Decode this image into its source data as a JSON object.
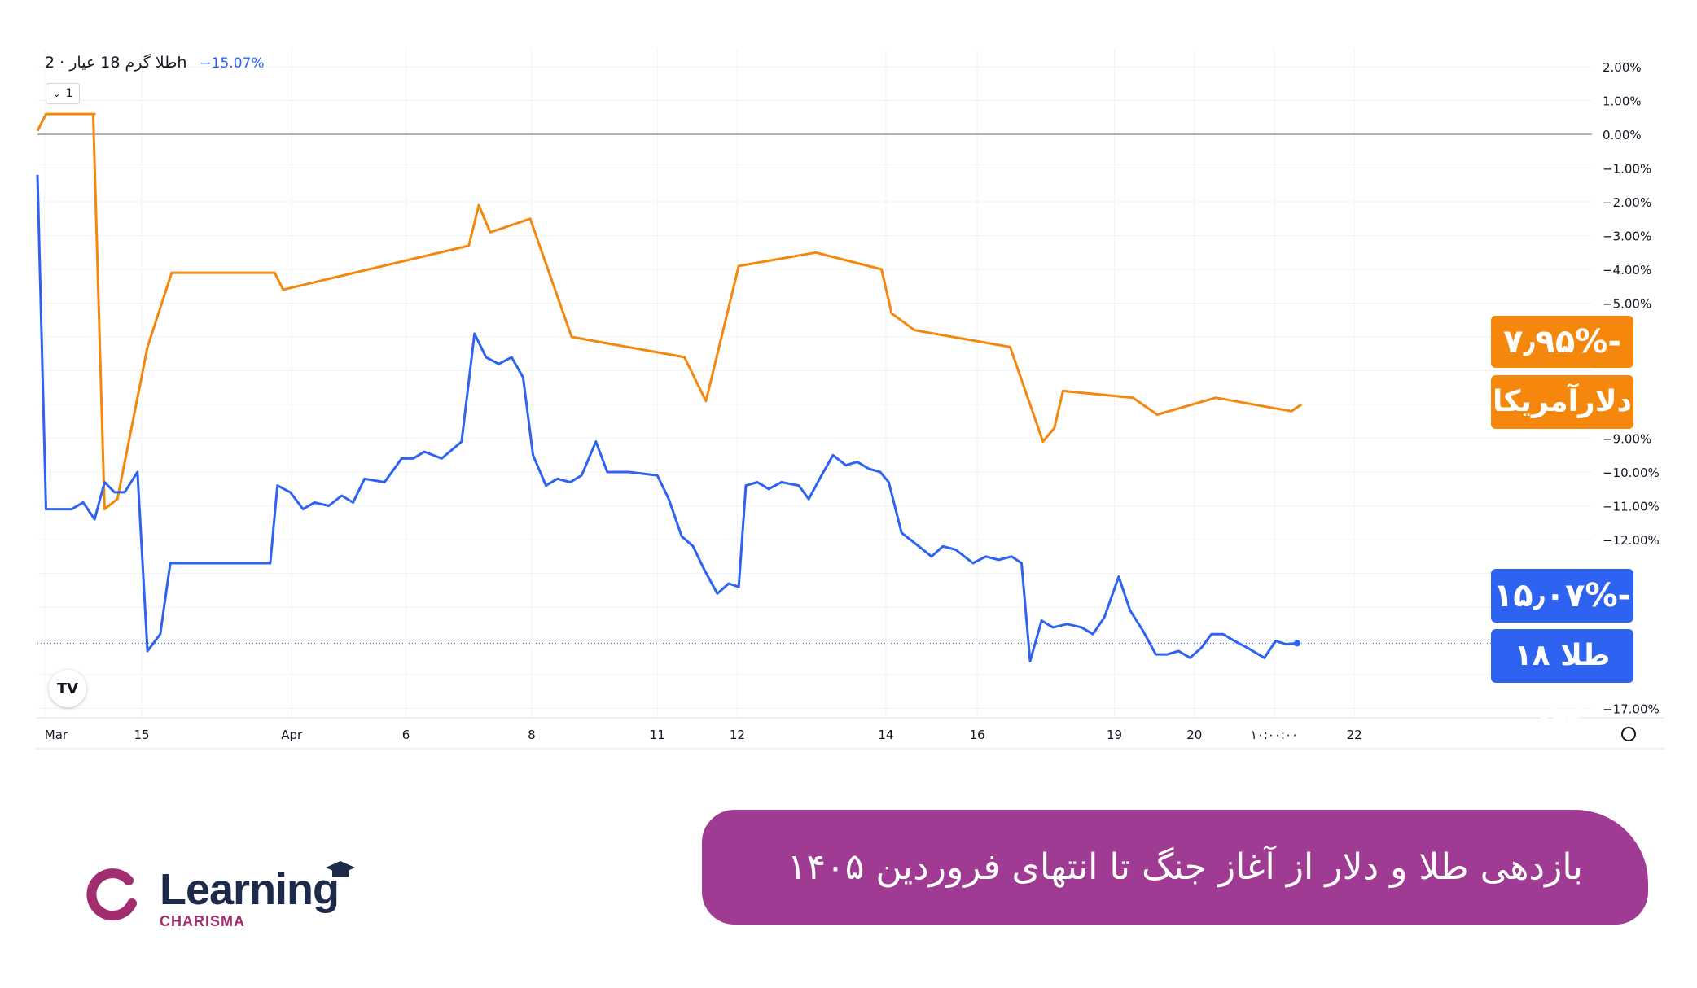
{
  "header": {
    "title": "طلا گرم 18 عیار · 2h",
    "change": "−15.07%"
  },
  "interval_selector": {
    "chevron": "⌄",
    "value": "1"
  },
  "tv_logo": {
    "text": "TV",
    "icon": "tradingview-logo-icon"
  },
  "settings_icon": "gear-icon",
  "labels": {
    "usd_pct": "-۷٫۹۵%",
    "usd_name": "دلارآمریکا",
    "gold_pct": "-۱۵٫۰۷%",
    "gold_name": "طلا ۱۸ عیار"
  },
  "banner": {
    "text": "بازدهی طلا و دلار از آغاز جنگ تا انتهای فروردین ۱۴۰۵"
  },
  "brand": {
    "name": "Learning",
    "sub": "CHARISMA"
  },
  "colors": {
    "usd": "#f4870c",
    "gold": "#2d63f0",
    "banner": "#9f3b92"
  },
  "chart_data": {
    "type": "line",
    "ylim": [
      -17.5,
      2.5
    ],
    "yticks": [
      2,
      1,
      0,
      -1,
      -2,
      -3,
      -4,
      -5,
      -9,
      -10,
      -11,
      -12,
      -17
    ],
    "ytick_labels": [
      "2.00%",
      "1.00%",
      "0.00%",
      "−1.00%",
      "−2.00%",
      "−3.00%",
      "−4.00%",
      "−5.00%",
      "−9.00%",
      "−10.00%",
      "−11.00%",
      "−12.00%",
      "−17.00%"
    ],
    "xlim": [
      0,
      100
    ],
    "x_ticks": [
      {
        "x": 0.5,
        "label": "Mar"
      },
      {
        "x": 7.3,
        "label": "15"
      },
      {
        "x": 17.8,
        "label": "Apr"
      },
      {
        "x": 25.8,
        "label": "6"
      },
      {
        "x": 34.6,
        "label": "8"
      },
      {
        "x": 43.4,
        "label": "11"
      },
      {
        "x": 49.0,
        "label": "12"
      },
      {
        "x": 59.4,
        "label": "14"
      },
      {
        "x": 65.8,
        "label": "16"
      },
      {
        "x": 75.4,
        "label": "19"
      },
      {
        "x": 81.0,
        "label": "20"
      },
      {
        "x": 86.6,
        "label": "۱۰:۰۰:۰۰"
      },
      {
        "x": 92.2,
        "label": "22"
      }
    ],
    "zero_line": 0,
    "last_value_line": -15.07,
    "grid": true,
    "series": [
      {
        "color": "#f4870c",
        "points": [
          [
            0,
            0.1
          ],
          [
            0.6,
            0.6
          ],
          [
            2,
            0.6
          ],
          [
            4,
            0.6
          ],
          [
            3.9,
            0.6
          ],
          [
            4.7,
            -11.1
          ],
          [
            5.6,
            -10.8
          ],
          [
            7.7,
            -6.3
          ],
          [
            9.4,
            -4.1
          ],
          [
            16.6,
            -4.1
          ],
          [
            17.2,
            -4.6
          ],
          [
            30.2,
            -3.3
          ],
          [
            30.9,
            -2.1
          ],
          [
            31.7,
            -2.9
          ],
          [
            34.5,
            -2.5
          ],
          [
            37.4,
            -6.0
          ],
          [
            45.3,
            -6.6
          ],
          [
            46.8,
            -7.9
          ],
          [
            49.1,
            -3.9
          ],
          [
            54.5,
            -3.5
          ],
          [
            59.1,
            -4.0
          ],
          [
            59.8,
            -5.3
          ],
          [
            61.4,
            -5.8
          ],
          [
            68.1,
            -6.3
          ],
          [
            70.4,
            -9.1
          ],
          [
            71.2,
            -8.7
          ],
          [
            71.8,
            -7.6
          ],
          [
            76.7,
            -7.8
          ],
          [
            78.4,
            -8.3
          ],
          [
            82.5,
            -7.8
          ],
          [
            87.8,
            -8.2
          ],
          [
            88.5,
            -8.0
          ]
        ]
      },
      {
        "color": "#2d63f0",
        "points": [
          [
            0,
            -1.2
          ],
          [
            0.6,
            -11.1
          ],
          [
            2.4,
            -11.1
          ],
          [
            3.2,
            -10.9
          ],
          [
            4,
            -11.4
          ],
          [
            4.7,
            -10.3
          ],
          [
            5.4,
            -10.6
          ],
          [
            6.1,
            -10.6
          ],
          [
            7,
            -10.0
          ],
          [
            7.7,
            -15.3
          ],
          [
            8.6,
            -14.8
          ],
          [
            9.3,
            -12.7
          ],
          [
            16.3,
            -12.7
          ],
          [
            16.8,
            -10.4
          ],
          [
            17.7,
            -10.6
          ],
          [
            18.6,
            -11.1
          ],
          [
            19.4,
            -10.9
          ],
          [
            20.4,
            -11.0
          ],
          [
            21.3,
            -10.7
          ],
          [
            22.1,
            -10.9
          ],
          [
            22.9,
            -10.2
          ],
          [
            24.3,
            -10.3
          ],
          [
            25.5,
            -9.6
          ],
          [
            26.3,
            -9.6
          ],
          [
            27.1,
            -9.4
          ],
          [
            28.3,
            -9.6
          ],
          [
            29.7,
            -9.1
          ],
          [
            30.6,
            -5.9
          ],
          [
            31.4,
            -6.6
          ],
          [
            32.3,
            -6.8
          ],
          [
            33.2,
            -6.6
          ],
          [
            34,
            -7.2
          ],
          [
            34.7,
            -9.5
          ],
          [
            35.6,
            -10.4
          ],
          [
            36.4,
            -10.2
          ],
          [
            37.3,
            -10.3
          ],
          [
            38.1,
            -10.1
          ],
          [
            39.1,
            -9.1
          ],
          [
            39.9,
            -10.0
          ],
          [
            41.4,
            -10.0
          ],
          [
            43.4,
            -10.1
          ],
          [
            44.2,
            -10.8
          ],
          [
            45.1,
            -11.9
          ],
          [
            45.9,
            -12.2
          ],
          [
            46.7,
            -12.9
          ],
          [
            47.6,
            -13.6
          ],
          [
            48.4,
            -13.3
          ],
          [
            49.1,
            -13.4
          ],
          [
            49.6,
            -10.4
          ],
          [
            50.4,
            -10.3
          ],
          [
            51.2,
            -10.5
          ],
          [
            52.1,
            -10.3
          ],
          [
            53.3,
            -10.4
          ],
          [
            54,
            -10.8
          ],
          [
            54.9,
            -10.1
          ],
          [
            55.7,
            -9.5
          ],
          [
            56.6,
            -9.8
          ],
          [
            57.4,
            -9.7
          ],
          [
            58.2,
            -9.9
          ],
          [
            59,
            -10.0
          ],
          [
            59.6,
            -10.3
          ],
          [
            60.5,
            -11.8
          ],
          [
            61.4,
            -12.1
          ],
          [
            62.6,
            -12.5
          ],
          [
            63.4,
            -12.2
          ],
          [
            64.3,
            -12.3
          ],
          [
            65.5,
            -12.7
          ],
          [
            66.4,
            -12.5
          ],
          [
            67.3,
            -12.6
          ],
          [
            68.2,
            -12.5
          ],
          [
            68.9,
            -12.7
          ],
          [
            69.5,
            -15.6
          ],
          [
            70.3,
            -14.4
          ],
          [
            71.1,
            -14.6
          ],
          [
            72.1,
            -14.5
          ],
          [
            73.1,
            -14.6
          ],
          [
            73.9,
            -14.8
          ],
          [
            74.7,
            -14.3
          ],
          [
            75.7,
            -13.1
          ],
          [
            76.5,
            -14.1
          ],
          [
            77.4,
            -14.7
          ],
          [
            78.3,
            -15.4
          ],
          [
            79.1,
            -15.4
          ],
          [
            79.9,
            -15.3
          ],
          [
            80.7,
            -15.5
          ],
          [
            81.5,
            -15.2
          ],
          [
            82.2,
            -14.8
          ],
          [
            83,
            -14.8
          ],
          [
            83.8,
            -15.0
          ],
          [
            84.7,
            -15.2
          ],
          [
            85.9,
            -15.5
          ],
          [
            86.7,
            -15.0
          ],
          [
            87.4,
            -15.1
          ],
          [
            88.2,
            -15.07
          ]
        ]
      }
    ]
  }
}
